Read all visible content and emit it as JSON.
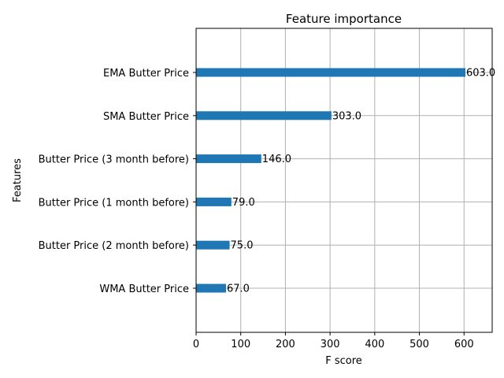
{
  "chart_data": {
    "type": "bar",
    "orientation": "horizontal",
    "title": "Feature importance",
    "xlabel": "F score",
    "ylabel": "Features",
    "categories": [
      "WMA Butter Price",
      "Butter Price (2 month before)",
      "Butter Price (1 month before)",
      "Butter Price (3 month before)",
      "SMA Butter Price",
      "EMA Butter Price"
    ],
    "values": [
      67,
      75,
      79,
      146,
      303,
      603
    ],
    "value_labels": [
      "67.0",
      "75.0",
      "79.0",
      "146.0",
      "303.0",
      "603.0"
    ],
    "xlim": [
      0,
      663
    ],
    "xticks": [
      0,
      100,
      200,
      300,
      400,
      500,
      600
    ],
    "grid": true,
    "bar_color": "#1f77b4"
  }
}
